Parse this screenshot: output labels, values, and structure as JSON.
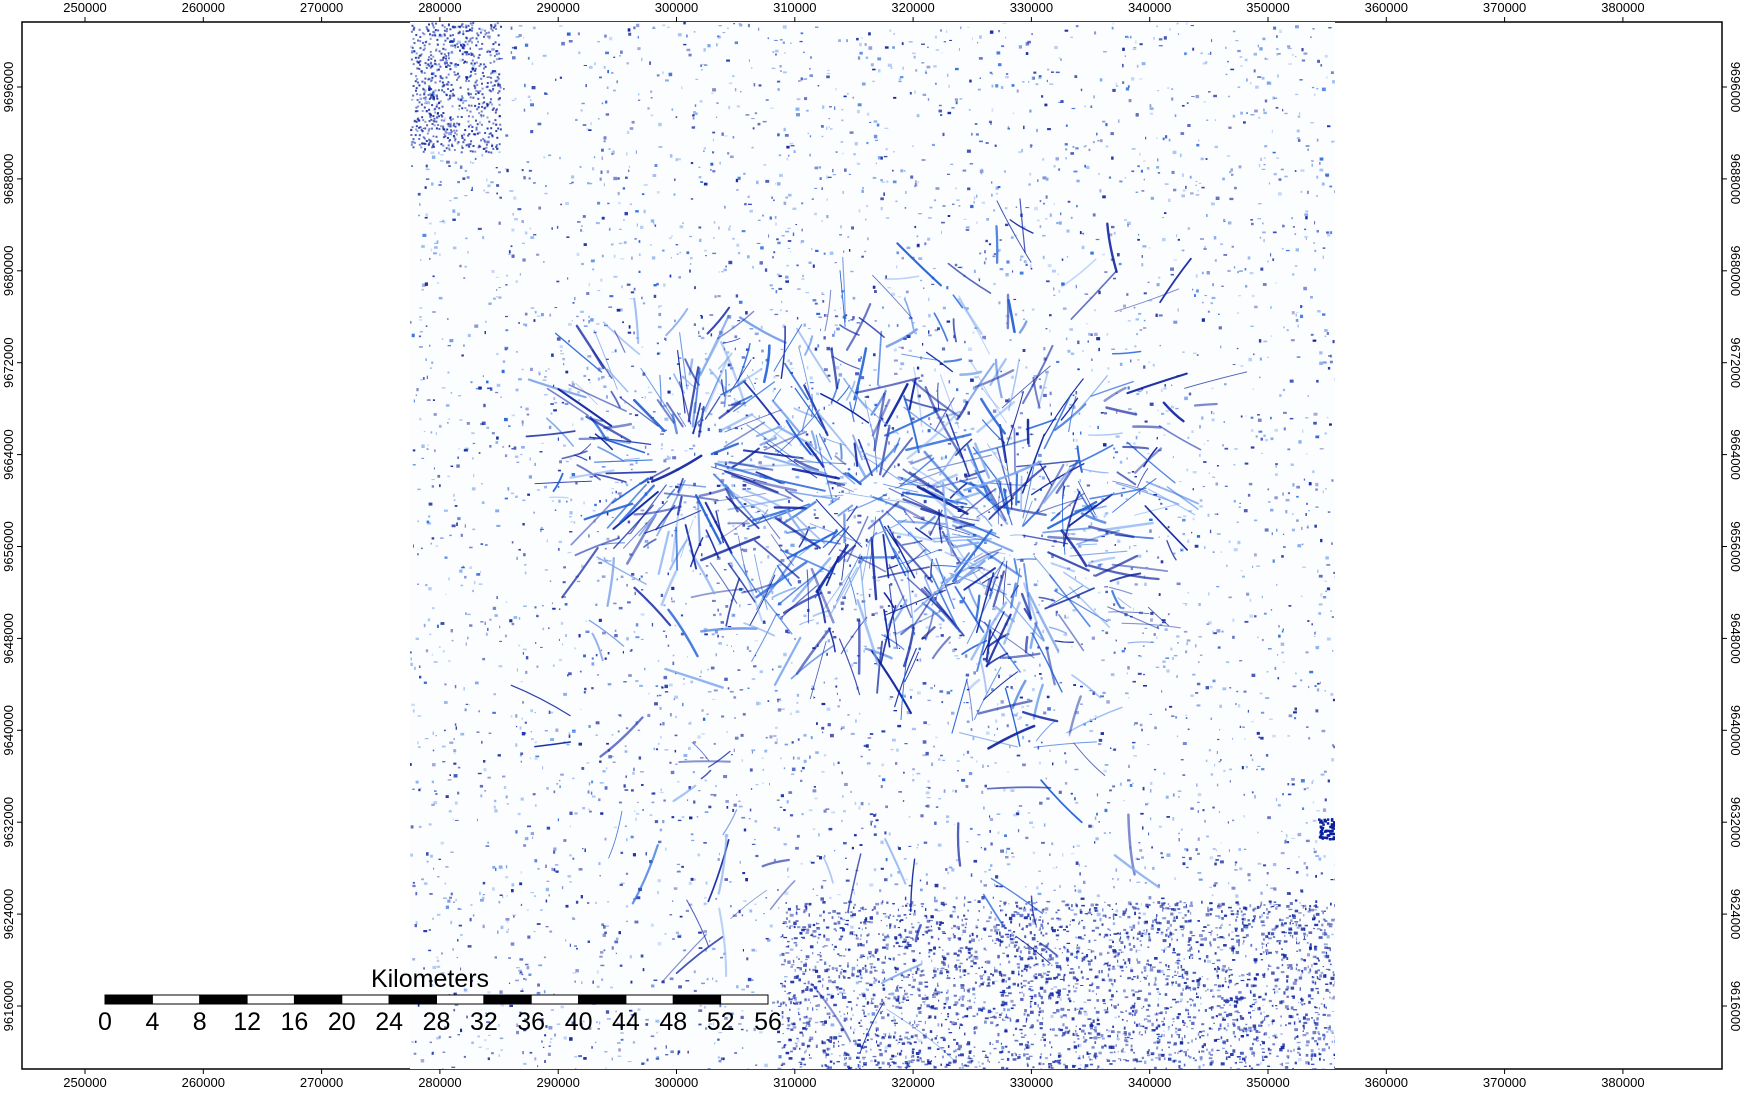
{
  "map": {
    "x_ticks": [
      "250000",
      "260000",
      "270000",
      "280000",
      "290000",
      "300000",
      "310000",
      "320000",
      "330000",
      "340000",
      "350000",
      "360000",
      "370000",
      "380000"
    ],
    "y_ticks": [
      "9696000",
      "9688000",
      "9680000",
      "9672000",
      "9664000",
      "9656000",
      "9648000",
      "9640000",
      "9632000",
      "9624000",
      "9616000"
    ],
    "colors": {
      "channel_dark": "#0a1f9e",
      "channel_mid": "#1f5fd6",
      "channel_light": "#7ea8ee",
      "background": "#ffffff",
      "frame": "#000000"
    }
  },
  "scale_bar": {
    "title": "Kilometers",
    "labels": [
      "0",
      "4",
      "8",
      "12",
      "16",
      "20",
      "24",
      "28",
      "32",
      "36",
      "40",
      "44",
      "48",
      "52",
      "56"
    ]
  }
}
